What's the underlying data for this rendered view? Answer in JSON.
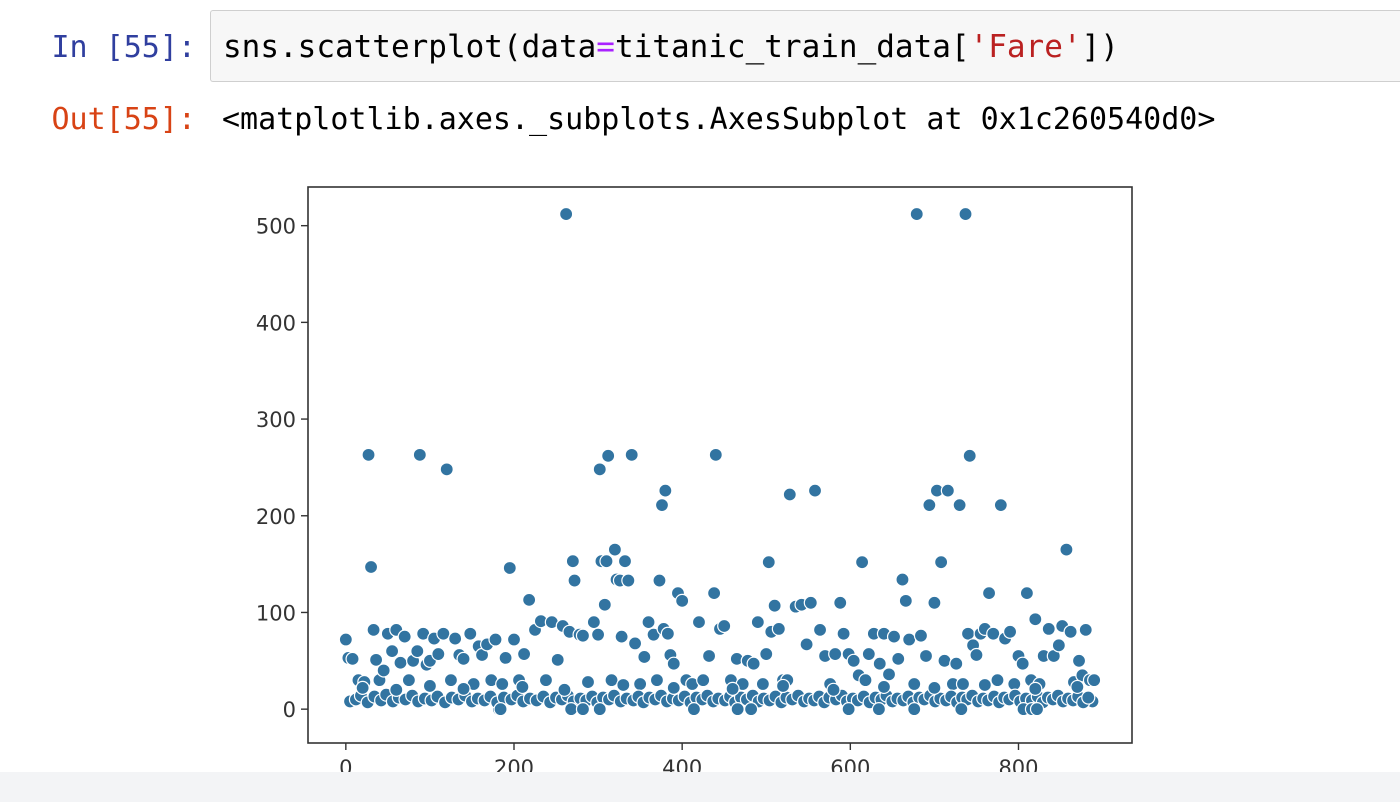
{
  "cell": {
    "in_prompt": "In [55]:",
    "out_prompt": "Out[55]:",
    "code": {
      "prefix": "sns.scatterplot(data",
      "op": "=",
      "middle": "titanic_train_data[",
      "string": "'Fare'",
      "suffix": "])"
    },
    "output_text": "<matplotlib.axes._subplots.AxesSubplot at 0x1c260540d0>"
  },
  "colors": {
    "prompt_in": "#303f9f",
    "prompt_out": "#d84315",
    "marker": "#3274a1",
    "marker_edge": "#ffffff",
    "axis": "#333333",
    "input_bg": "#f7f7f7"
  },
  "chart_data": {
    "type": "scatter",
    "xlim": [
      -45,
      935
    ],
    "ylim": [
      -35,
      540
    ],
    "x_ticks": [
      0,
      200,
      400,
      600,
      800
    ],
    "y_ticks": [
      0,
      100,
      200,
      300,
      400,
      500
    ],
    "grid": false,
    "legend": "none",
    "points": [
      [
        0,
        72
      ],
      [
        3,
        53
      ],
      [
        8,
        52
      ],
      [
        15,
        30
      ],
      [
        22,
        28
      ],
      [
        27,
        263
      ],
      [
        30,
        147
      ],
      [
        33,
        82
      ],
      [
        36,
        51
      ],
      [
        40,
        30
      ],
      [
        45,
        40
      ],
      [
        50,
        78
      ],
      [
        55,
        60
      ],
      [
        60,
        82
      ],
      [
        65,
        48
      ],
      [
        70,
        75
      ],
      [
        75,
        30
      ],
      [
        80,
        50
      ],
      [
        85,
        60
      ],
      [
        88,
        263
      ],
      [
        92,
        78
      ],
      [
        96,
        46
      ],
      [
        100,
        50
      ],
      [
        105,
        73
      ],
      [
        110,
        57
      ],
      [
        116,
        78
      ],
      [
        120,
        248
      ],
      [
        125,
        30
      ],
      [
        130,
        73
      ],
      [
        135,
        56
      ],
      [
        140,
        52
      ],
      [
        148,
        78
      ],
      [
        152,
        26
      ],
      [
        158,
        65
      ],
      [
        162,
        56
      ],
      [
        168,
        67
      ],
      [
        173,
        30
      ],
      [
        178,
        72
      ],
      [
        182,
        0
      ],
      [
        186,
        26
      ],
      [
        190,
        53
      ],
      [
        195,
        146
      ],
      [
        200,
        72
      ],
      [
        206,
        30
      ],
      [
        212,
        57
      ],
      [
        218,
        113
      ],
      [
        225,
        82
      ],
      [
        232,
        91
      ],
      [
        238,
        30
      ],
      [
        245,
        90
      ],
      [
        252,
        51
      ],
      [
        258,
        86
      ],
      [
        262,
        512
      ],
      [
        266,
        80
      ],
      [
        270,
        153
      ],
      [
        272,
        133
      ],
      [
        278,
        77
      ],
      [
        282,
        76
      ],
      [
        288,
        28
      ],
      [
        295,
        90
      ],
      [
        300,
        77
      ],
      [
        302,
        248
      ],
      [
        304,
        153
      ],
      [
        308,
        108
      ],
      [
        310,
        153
      ],
      [
        312,
        262
      ],
      [
        316,
        30
      ],
      [
        320,
        165
      ],
      [
        322,
        134
      ],
      [
        326,
        133
      ],
      [
        328,
        75
      ],
      [
        332,
        153
      ],
      [
        336,
        133
      ],
      [
        340,
        263
      ],
      [
        344,
        68
      ],
      [
        350,
        26
      ],
      [
        355,
        54
      ],
      [
        360,
        90
      ],
      [
        366,
        77
      ],
      [
        370,
        30
      ],
      [
        373,
        133
      ],
      [
        376,
        211
      ],
      [
        378,
        83
      ],
      [
        380,
        226
      ],
      [
        383,
        78
      ],
      [
        386,
        56
      ],
      [
        390,
        47
      ],
      [
        395,
        120
      ],
      [
        400,
        112
      ],
      [
        405,
        30
      ],
      [
        412,
        26
      ],
      [
        420,
        90
      ],
      [
        425,
        30
      ],
      [
        432,
        55
      ],
      [
        438,
        120
      ],
      [
        440,
        263
      ],
      [
        445,
        83
      ],
      [
        450,
        86
      ],
      [
        458,
        30
      ],
      [
        465,
        52
      ],
      [
        472,
        26
      ],
      [
        478,
        50
      ],
      [
        485,
        47
      ],
      [
        490,
        90
      ],
      [
        496,
        26
      ],
      [
        500,
        57
      ],
      [
        503,
        152
      ],
      [
        506,
        80
      ],
      [
        510,
        107
      ],
      [
        515,
        83
      ],
      [
        520,
        30
      ],
      [
        525,
        30
      ],
      [
        528,
        222
      ],
      [
        535,
        106
      ],
      [
        542,
        108
      ],
      [
        548,
        67
      ],
      [
        553,
        110
      ],
      [
        558,
        226
      ],
      [
        564,
        82
      ],
      [
        570,
        55
      ],
      [
        576,
        26
      ],
      [
        582,
        57
      ],
      [
        588,
        110
      ],
      [
        592,
        78
      ],
      [
        598,
        57
      ],
      [
        604,
        50
      ],
      [
        610,
        35
      ],
      [
        614,
        152
      ],
      [
        618,
        30
      ],
      [
        622,
        57
      ],
      [
        628,
        78
      ],
      [
        635,
        47
      ],
      [
        640,
        78
      ],
      [
        646,
        36
      ],
      [
        652,
        75
      ],
      [
        657,
        52
      ],
      [
        662,
        134
      ],
      [
        666,
        112
      ],
      [
        670,
        72
      ],
      [
        676,
        26
      ],
      [
        679,
        512
      ],
      [
        684,
        76
      ],
      [
        690,
        55
      ],
      [
        694,
        211
      ],
      [
        700,
        110
      ],
      [
        703,
        226
      ],
      [
        708,
        152
      ],
      [
        712,
        50
      ],
      [
        716,
        226
      ],
      [
        722,
        26
      ],
      [
        726,
        47
      ],
      [
        730,
        211
      ],
      [
        734,
        26
      ],
      [
        737,
        512
      ],
      [
        740,
        78
      ],
      [
        742,
        262
      ],
      [
        746,
        66
      ],
      [
        750,
        56
      ],
      [
        755,
        78
      ],
      [
        760,
        83
      ],
      [
        765,
        120
      ],
      [
        770,
        78
      ],
      [
        775,
        30
      ],
      [
        779,
        211
      ],
      [
        784,
        73
      ],
      [
        790,
        80
      ],
      [
        795,
        26
      ],
      [
        800,
        55
      ],
      [
        805,
        47
      ],
      [
        810,
        120
      ],
      [
        815,
        30
      ],
      [
        820,
        93
      ],
      [
        825,
        26
      ],
      [
        830,
        55
      ],
      [
        836,
        83
      ],
      [
        842,
        55
      ],
      [
        848,
        66
      ],
      [
        852,
        86
      ],
      [
        857,
        165
      ],
      [
        862,
        80
      ],
      [
        866,
        28
      ],
      [
        872,
        50
      ],
      [
        876,
        35
      ],
      [
        880,
        82
      ],
      [
        885,
        30
      ],
      [
        888,
        8
      ],
      [
        890,
        30
      ],
      [
        5,
        8
      ],
      [
        12,
        10
      ],
      [
        18,
        14
      ],
      [
        26,
        7
      ],
      [
        34,
        13
      ],
      [
        42,
        9
      ],
      [
        48,
        15
      ],
      [
        56,
        8
      ],
      [
        63,
        12
      ],
      [
        71,
        10
      ],
      [
        79,
        14
      ],
      [
        86,
        8
      ],
      [
        94,
        11
      ],
      [
        102,
        9
      ],
      [
        109,
        13
      ],
      [
        118,
        7
      ],
      [
        126,
        12
      ],
      [
        134,
        10
      ],
      [
        142,
        14
      ],
      [
        150,
        8
      ],
      [
        157,
        11
      ],
      [
        165,
        9
      ],
      [
        172,
        13
      ],
      [
        180,
        7
      ],
      [
        188,
        12
      ],
      [
        197,
        10
      ],
      [
        204,
        14
      ],
      [
        211,
        8
      ],
      [
        219,
        11
      ],
      [
        227,
        9
      ],
      [
        235,
        13
      ],
      [
        243,
        7
      ],
      [
        250,
        12
      ],
      [
        257,
        10
      ],
      [
        264,
        14
      ],
      [
        271,
        8
      ],
      [
        279,
        11
      ],
      [
        286,
        9
      ],
      [
        293,
        13
      ],
      [
        299,
        7
      ],
      [
        306,
        12
      ],
      [
        313,
        10
      ],
      [
        319,
        14
      ],
      [
        327,
        8
      ],
      [
        334,
        11
      ],
      [
        342,
        9
      ],
      [
        348,
        13
      ],
      [
        354,
        7
      ],
      [
        361,
        12
      ],
      [
        368,
        10
      ],
      [
        375,
        14
      ],
      [
        382,
        8
      ],
      [
        389,
        11
      ],
      [
        396,
        9
      ],
      [
        403,
        13
      ],
      [
        410,
        7
      ],
      [
        417,
        12
      ],
      [
        424,
        10
      ],
      [
        430,
        14
      ],
      [
        437,
        8
      ],
      [
        443,
        11
      ],
      [
        451,
        9
      ],
      [
        457,
        13
      ],
      [
        463,
        7
      ],
      [
        470,
        12
      ],
      [
        477,
        10
      ],
      [
        484,
        14
      ],
      [
        491,
        8
      ],
      [
        497,
        11
      ],
      [
        504,
        9
      ],
      [
        511,
        13
      ],
      [
        518,
        7
      ],
      [
        524,
        12
      ],
      [
        531,
        10
      ],
      [
        538,
        14
      ],
      [
        545,
        8
      ],
      [
        551,
        11
      ],
      [
        557,
        9
      ],
      [
        563,
        13
      ],
      [
        569,
        7
      ],
      [
        575,
        12
      ],
      [
        583,
        10
      ],
      [
        590,
        14
      ],
      [
        596,
        8
      ],
      [
        603,
        11
      ],
      [
        609,
        9
      ],
      [
        616,
        13
      ],
      [
        623,
        7
      ],
      [
        630,
        12
      ],
      [
        637,
        10
      ],
      [
        643,
        14
      ],
      [
        650,
        8
      ],
      [
        656,
        11
      ],
      [
        663,
        9
      ],
      [
        669,
        13
      ],
      [
        675,
        7
      ],
      [
        682,
        12
      ],
      [
        688,
        10
      ],
      [
        695,
        14
      ],
      [
        701,
        8
      ],
      [
        707,
        11
      ],
      [
        714,
        9
      ],
      [
        720,
        13
      ],
      [
        727,
        7
      ],
      [
        733,
        12
      ],
      [
        739,
        10
      ],
      [
        745,
        14
      ],
      [
        752,
        8
      ],
      [
        758,
        11
      ],
      [
        764,
        9
      ],
      [
        771,
        13
      ],
      [
        777,
        7
      ],
      [
        783,
        12
      ],
      [
        789,
        10
      ],
      [
        796,
        14
      ],
      [
        802,
        8
      ],
      [
        809,
        11
      ],
      [
        816,
        9
      ],
      [
        823,
        13
      ],
      [
        829,
        7
      ],
      [
        835,
        12
      ],
      [
        841,
        10
      ],
      [
        847,
        14
      ],
      [
        853,
        8
      ],
      [
        859,
        11
      ],
      [
        865,
        9
      ],
      [
        871,
        13
      ],
      [
        877,
        7
      ],
      [
        883,
        12
      ],
      [
        20,
        22
      ],
      [
        60,
        20
      ],
      [
        100,
        24
      ],
      [
        140,
        21
      ],
      [
        210,
        23
      ],
      [
        260,
        20
      ],
      [
        330,
        25
      ],
      [
        390,
        22
      ],
      [
        460,
        21
      ],
      [
        520,
        24
      ],
      [
        580,
        20
      ],
      [
        640,
        23
      ],
      [
        700,
        22
      ],
      [
        760,
        25
      ],
      [
        820,
        21
      ],
      [
        870,
        23
      ],
      [
        184,
        0
      ],
      [
        268,
        0
      ],
      [
        282,
        0
      ],
      [
        302,
        0
      ],
      [
        414,
        0
      ],
      [
        466,
        0
      ],
      [
        482,
        0
      ],
      [
        598,
        0
      ],
      [
        634,
        0
      ],
      [
        676,
        0
      ],
      [
        732,
        0
      ],
      [
        806,
        0
      ],
      [
        816,
        0
      ],
      [
        822,
        0
      ]
    ]
  }
}
